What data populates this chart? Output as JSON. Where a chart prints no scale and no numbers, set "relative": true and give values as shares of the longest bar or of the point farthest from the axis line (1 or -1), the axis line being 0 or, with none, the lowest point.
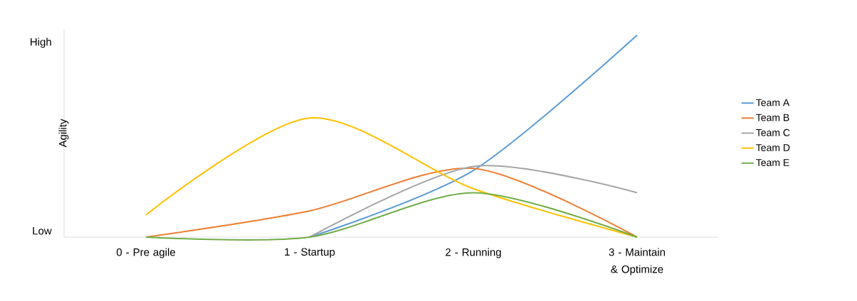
{
  "chart_data": {
    "type": "line",
    "ylabel": "Agility",
    "relative": true,
    "categories": [
      "0 - Pre agile",
      "1 - Startup",
      "2 - Running",
      "3 - Maintain & Optimize"
    ],
    "annotations": [
      "High",
      "Low"
    ],
    "legend": "right",
    "marker": "none",
    "line_style": "solid",
    "series": [
      {
        "name": "Team A",
        "color": "#5b9bd5",
        "values": [
          null,
          0,
          0.33,
          1
        ]
      },
      {
        "name": "Team B",
        "color": "#ed7d31",
        "values": [
          0,
          0.13,
          0.34,
          0
        ]
      },
      {
        "name": "Team C",
        "color": "#a5a5a5",
        "values": [
          null,
          0,
          0.35,
          0.22
        ]
      },
      {
        "name": "Team D",
        "color": "#ffc000",
        "values": [
          0.11,
          0.59,
          0.24,
          0
        ]
      },
      {
        "name": "Team E",
        "color": "#70ad47",
        "values": [
          0,
          0,
          0.22,
          0
        ]
      }
    ]
  }
}
